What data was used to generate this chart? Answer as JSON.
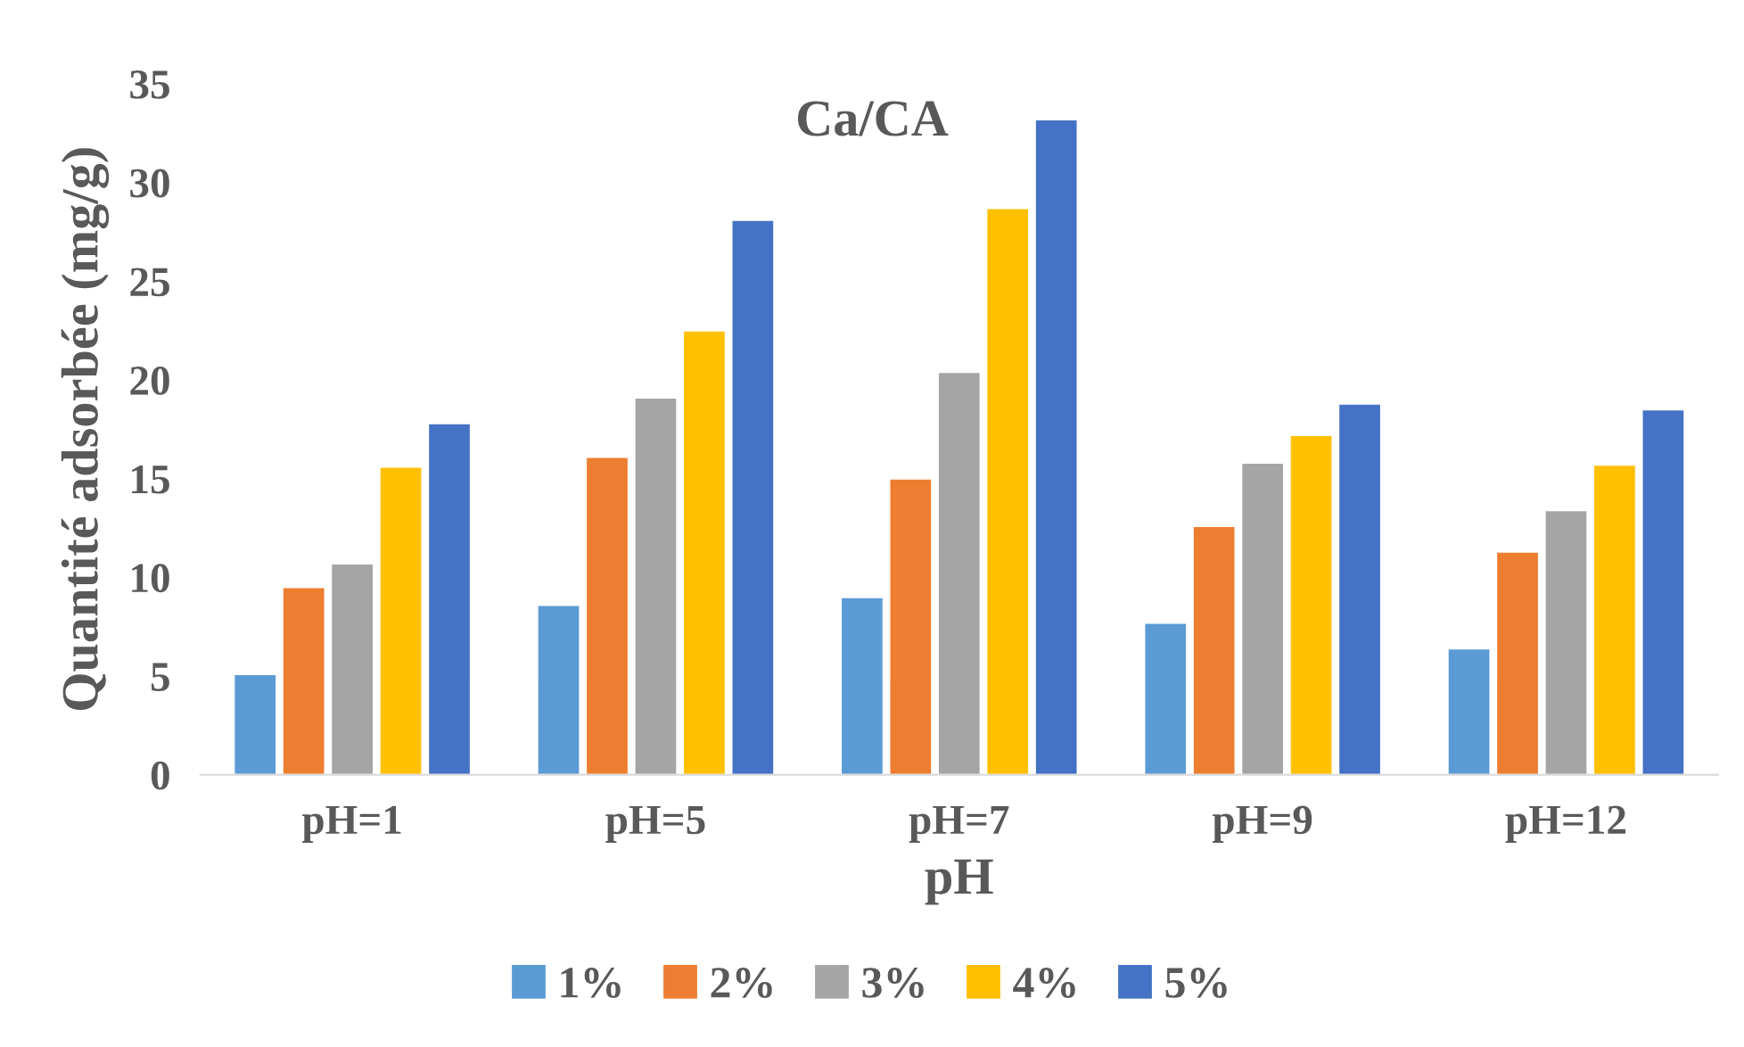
{
  "chart_data": {
    "type": "bar",
    "title": "Ca/CA",
    "xlabel": "pH",
    "ylabel": "Quantité adsorbée (mg/g)",
    "categories": [
      "pH=1",
      "pH=5",
      "pH=7",
      "pH=9",
      "pH=12"
    ],
    "series": [
      {
        "name": "1%",
        "color": "#5b9bd5",
        "values": [
          5.1,
          8.6,
          9.0,
          7.7,
          6.4
        ]
      },
      {
        "name": "2%",
        "color": "#ed7d31",
        "values": [
          9.5,
          16.1,
          15.0,
          12.6,
          11.3
        ]
      },
      {
        "name": "3%",
        "color": "#a5a5a5",
        "values": [
          10.7,
          19.1,
          20.4,
          15.8,
          13.4
        ]
      },
      {
        "name": "4%",
        "color": "#ffc000",
        "values": [
          15.6,
          22.5,
          28.7,
          17.2,
          15.7
        ]
      },
      {
        "name": "5%",
        "color": "#4472c4",
        "values": [
          17.8,
          28.1,
          33.2,
          18.8,
          18.5
        ]
      }
    ],
    "ylim": [
      0,
      35
    ],
    "yticks": [
      0,
      5,
      10,
      15,
      20,
      25,
      30,
      35
    ],
    "grid": false,
    "legend": "bottom"
  }
}
